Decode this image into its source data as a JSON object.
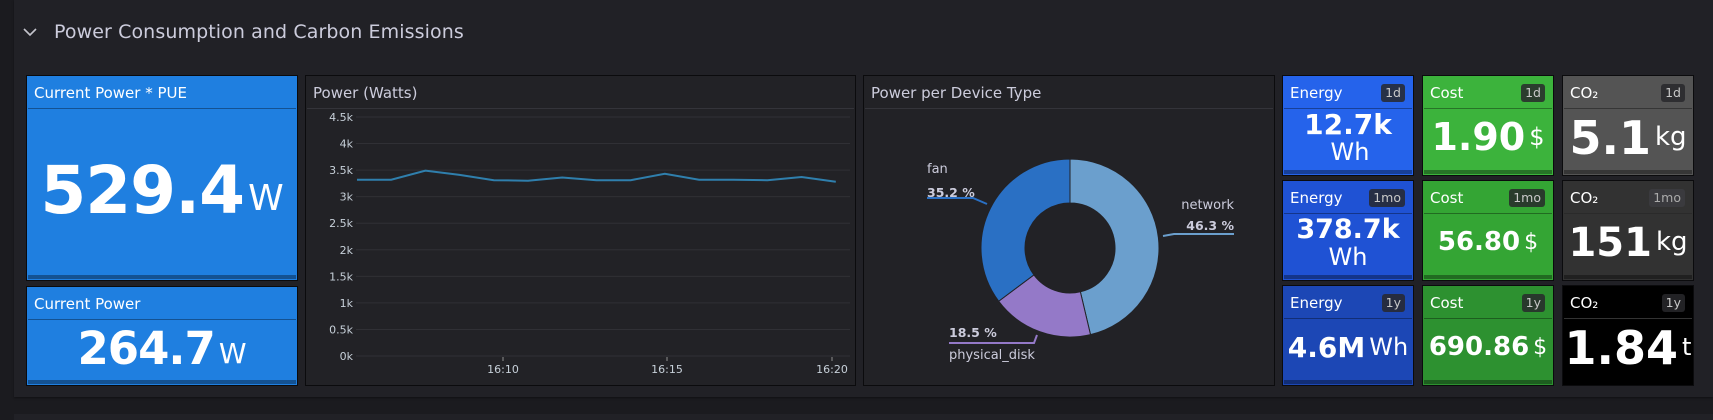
{
  "row": {
    "title": "Power Consumption and Carbon Emissions",
    "collapse_icon": "chevron-down-icon"
  },
  "panels": {
    "current_power_pue": {
      "title": "Current Power * PUE",
      "value": "529.4",
      "unit": "W",
      "color": "#1f7fe0"
    },
    "current_power": {
      "title": "Current Power",
      "value": "264.7",
      "unit": "W",
      "color": "#1f7fe0"
    },
    "power_watts": {
      "title": "Power (Watts)"
    },
    "power_per_device": {
      "title": "Power per Device Type"
    },
    "energy": [
      {
        "title": "Energy",
        "badge": "1d",
        "value": "12.7k",
        "unit": "Wh",
        "color": "#2563eb"
      },
      {
        "title": "Energy",
        "badge": "1mo",
        "value": "378.7k",
        "unit": "Wh",
        "color": "#1f52d4"
      },
      {
        "title": "Energy",
        "badge": "1y",
        "value": "4.6M",
        "unit": "Wh",
        "color": "#1c47b5"
      }
    ],
    "cost": [
      {
        "title": "Cost",
        "badge": "1d",
        "value": "1.90",
        "unit": "$",
        "color": "#3cb33c"
      },
      {
        "title": "Cost",
        "badge": "1mo",
        "value": "56.80",
        "unit": "$",
        "color": "#34a534"
      },
      {
        "title": "Cost",
        "badge": "1y",
        "value": "690.86",
        "unit": "$",
        "color": "#2d9130"
      }
    ],
    "co2": [
      {
        "title": "CO₂",
        "badge": "1d",
        "value": "5.1",
        "unit": "kg",
        "color": "#545454"
      },
      {
        "title": "CO₂",
        "badge": "1mo",
        "value": "151",
        "unit": "kg",
        "color": "#323232"
      },
      {
        "title": "CO₂",
        "badge": "1y",
        "value": "1.84",
        "unit": "t",
        "color": "#000000"
      }
    ]
  },
  "chart_data": [
    {
      "type": "line",
      "title": "Power (Watts)",
      "xlabel": "",
      "ylabel": "",
      "x_tick_labels": [
        "16:10",
        "16:15",
        "16:20"
      ],
      "y_tick_labels": [
        "0k",
        "0.5k",
        "1k",
        "1.5k",
        "2k",
        "2.5k",
        "3k",
        "3.5k",
        "4k",
        "4.5k"
      ],
      "ylim": [
        0,
        4500
      ],
      "grid": true,
      "legend": "none",
      "series": [
        {
          "name": "Power",
          "color": "#2f7fad",
          "values": [
            3320,
            3320,
            3490,
            3410,
            3310,
            3300,
            3360,
            3310,
            3310,
            3430,
            3320,
            3320,
            3310,
            3370,
            3280
          ]
        }
      ]
    },
    {
      "type": "pie",
      "title": "Power per Device Type",
      "donut": true,
      "legend": "labels on slices",
      "categories": [
        "network",
        "physical_disk",
        "fan"
      ],
      "values": [
        46.3,
        18.5,
        35.2
      ],
      "labels": [
        "46.3 %",
        "18.5 %",
        "35.2 %"
      ],
      "colors": [
        "#6b9fcd",
        "#9479c8",
        "#2a70c4"
      ]
    }
  ]
}
